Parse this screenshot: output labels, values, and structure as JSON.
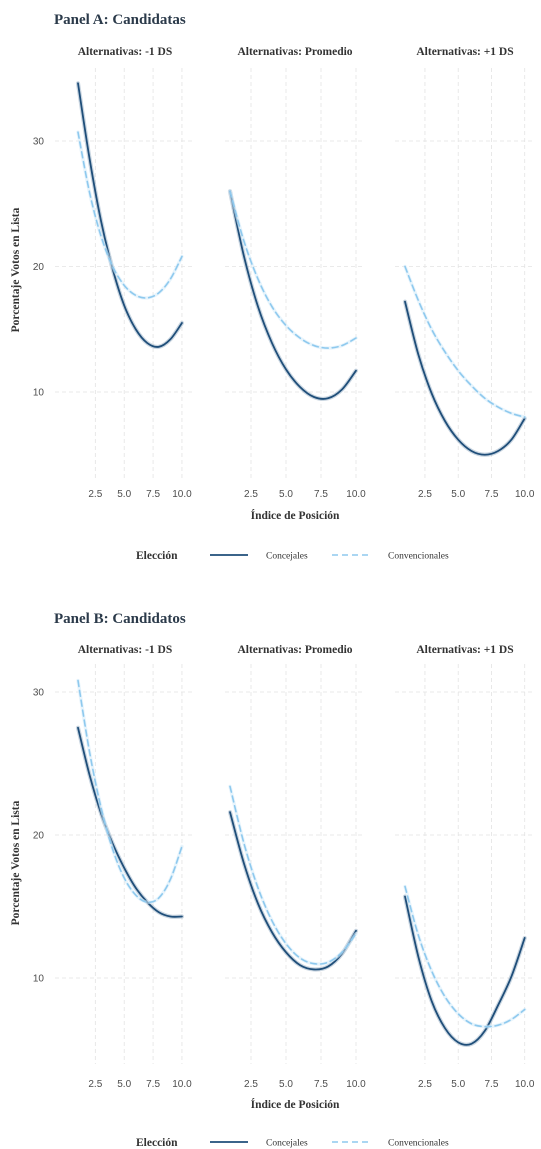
{
  "chart_data": [
    {
      "type": "line",
      "title": "Panel A: Candidatas",
      "xlabel": "Índice de Posición",
      "ylabel": "Porcentaje Votos en Lista",
      "xlim": [
        1,
        10
      ],
      "ylim": [
        3,
        35
      ],
      "xticks": [
        2.5,
        5.0,
        7.5,
        10.0
      ],
      "xtick_labels": [
        "2.5",
        "5.0",
        "7.5",
        "10.0"
      ],
      "yticks": [
        10,
        20,
        30
      ],
      "ytick_labels": [
        "10",
        "20",
        "30"
      ],
      "grid": true,
      "legend_title": "Elección",
      "legend_position": "bottom",
      "facets": [
        {
          "title": "Alternativas: -1 DS",
          "series": [
            {
              "name": "Concejales",
              "style": "solid",
              "color": "#1f4e79",
              "x": [
                1,
                2,
                3,
                4,
                5,
                6,
                7,
                8,
                9,
                10
              ],
              "y": [
                34.6,
                28.6,
                23.6,
                19.8,
                16.9,
                15.0,
                13.9,
                13.6,
                14.2,
                15.5
              ]
            },
            {
              "name": "Convencionales",
              "style": "dashed",
              "color": "#8ec9ee",
              "x": [
                1,
                2,
                3,
                4,
                5,
                6,
                7,
                8,
                9,
                10
              ],
              "y": [
                30.7,
                25.9,
                22.4,
                20.0,
                18.5,
                17.7,
                17.5,
                17.9,
                19.0,
                20.8
              ]
            }
          ]
        },
        {
          "title": "Alternativas: Promedio",
          "series": [
            {
              "name": "Concejales",
              "style": "solid",
              "color": "#1f4e79",
              "x": [
                1,
                2,
                3,
                4,
                5,
                6,
                7,
                8,
                9,
                10
              ],
              "y": [
                26.0,
                20.8,
                16.8,
                13.9,
                11.8,
                10.4,
                9.6,
                9.5,
                10.2,
                11.7
              ]
            },
            {
              "name": "Convencionales",
              "style": "dashed",
              "color": "#8ec9ee",
              "x": [
                1,
                2,
                3,
                4,
                5,
                6,
                7,
                8,
                9,
                10
              ],
              "y": [
                26.0,
                22.0,
                19.0,
                16.8,
                15.3,
                14.3,
                13.7,
                13.5,
                13.7,
                14.3
              ]
            }
          ]
        },
        {
          "title": "Alternativas: +1 DS",
          "series": [
            {
              "name": "Concejales",
              "style": "solid",
              "color": "#1f4e79",
              "x": [
                1,
                2,
                3,
                4,
                5,
                6,
                7,
                8,
                9,
                10
              ],
              "y": [
                17.2,
                13.0,
                9.9,
                7.7,
                6.2,
                5.3,
                5.0,
                5.3,
                6.2,
                7.9
              ]
            },
            {
              "name": "Convencionales",
              "style": "dashed",
              "color": "#8ec9ee",
              "x": [
                1,
                2,
                3,
                4,
                5,
                6,
                7,
                8,
                9,
                10
              ],
              "y": [
                20.0,
                17.3,
                15.0,
                13.2,
                11.7,
                10.5,
                9.5,
                8.8,
                8.3,
                8.0
              ]
            }
          ]
        }
      ]
    },
    {
      "type": "line",
      "title": "Panel B: Candidatos",
      "xlabel": "Índice de Posición",
      "ylabel": "Porcentaje Votos en Lista",
      "xlim": [
        1,
        10
      ],
      "ylim": [
        3,
        32
      ],
      "xticks": [
        2.5,
        5.0,
        7.5,
        10.0
      ],
      "xtick_labels": [
        "2.5",
        "5.0",
        "7.5",
        "10.0"
      ],
      "yticks": [
        10,
        20,
        30
      ],
      "ytick_labels": [
        "10",
        "20",
        "30"
      ],
      "grid": true,
      "legend_title": "Elección",
      "legend_position": "bottom",
      "facets": [
        {
          "title": "Alternativas: -1 DS",
          "series": [
            {
              "name": "Concejales",
              "style": "solid",
              "color": "#1f4e79",
              "x": [
                1,
                2,
                3,
                4,
                5,
                6,
                7,
                8,
                9,
                10
              ],
              "y": [
                27.5,
                24.2,
                21.5,
                19.4,
                17.7,
                16.3,
                15.3,
                14.6,
                14.3,
                14.3
              ]
            },
            {
              "name": "Convencionales",
              "style": "dashed",
              "color": "#8ec9ee",
              "x": [
                1,
                2,
                3,
                4,
                5,
                6,
                7,
                8,
                9,
                10
              ],
              "y": [
                30.8,
                25.8,
                21.9,
                19.0,
                17.0,
                15.8,
                15.3,
                15.6,
                16.9,
                19.2
              ]
            }
          ]
        },
        {
          "title": "Alternativas: Promedio",
          "series": [
            {
              "name": "Concejales",
              "style": "solid",
              "color": "#1f4e79",
              "x": [
                1,
                2,
                3,
                4,
                5,
                6,
                7,
                8,
                9,
                10
              ],
              "y": [
                21.6,
                18.0,
                15.2,
                13.2,
                11.8,
                10.9,
                10.6,
                10.8,
                11.7,
                13.3
              ]
            },
            {
              "name": "Convencionales",
              "style": "dashed",
              "color": "#8ec9ee",
              "x": [
                1,
                2,
                3,
                4,
                5,
                6,
                7,
                8,
                9,
                10
              ],
              "y": [
                23.4,
                19.4,
                16.3,
                14.0,
                12.4,
                11.4,
                11.0,
                11.1,
                11.8,
                13.1
              ]
            }
          ]
        },
        {
          "title": "Alternativas: +1 DS",
          "series": [
            {
              "name": "Concejales",
              "style": "solid",
              "color": "#1f4e79",
              "x": [
                1,
                2,
                3,
                4,
                5,
                6,
                7,
                8,
                9,
                10
              ],
              "y": [
                15.7,
                11.5,
                8.4,
                6.5,
                5.5,
                5.4,
                6.3,
                8.1,
                10.1,
                12.8
              ]
            },
            {
              "name": "Convencionales",
              "style": "dashed",
              "color": "#8ec9ee",
              "x": [
                1,
                2,
                3,
                4,
                5,
                6,
                7,
                8,
                9,
                10
              ],
              "y": [
                16.4,
                13.0,
                10.5,
                8.7,
                7.5,
                6.8,
                6.6,
                6.7,
                7.1,
                7.8
              ]
            }
          ]
        }
      ]
    }
  ]
}
